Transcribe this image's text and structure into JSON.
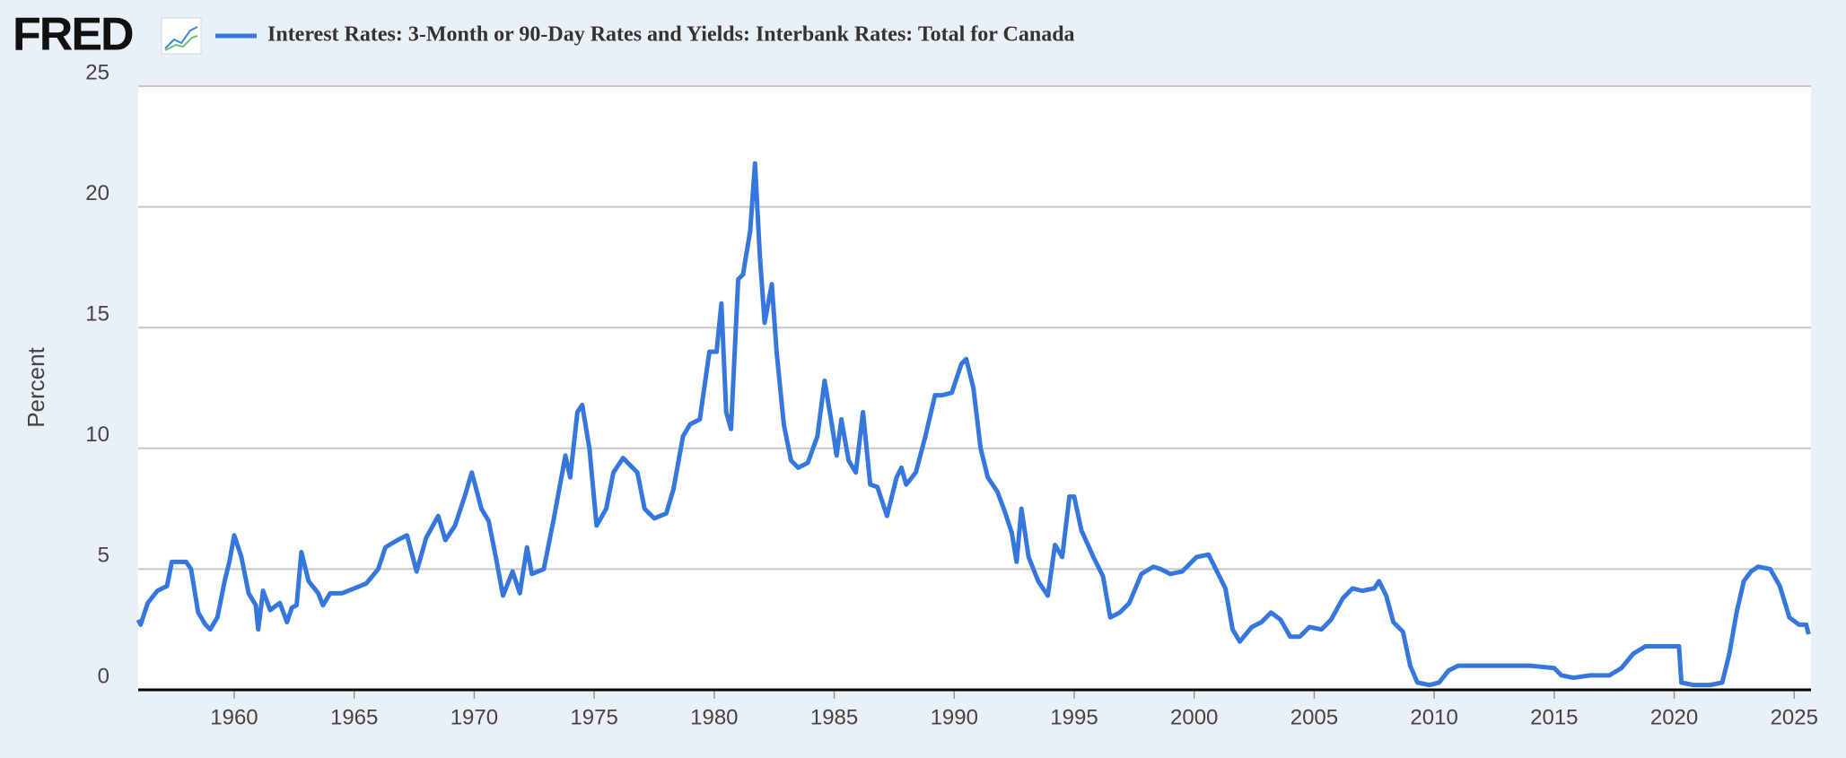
{
  "brand": "FRED",
  "chart_data": {
    "type": "line",
    "y_label": "Percent",
    "xlim": [
      1956.0,
      2025.7
    ],
    "ylim": [
      0,
      25
    ],
    "xticks": [
      1960,
      1965,
      1970,
      1975,
      1980,
      1985,
      1990,
      1995,
      2000,
      2005,
      2010,
      2015,
      2020,
      2025
    ],
    "yticks": [
      0,
      5,
      10,
      15,
      20,
      25
    ],
    "grid": true,
    "x": [
      1956.0,
      1956.1,
      1956.4,
      1956.8,
      1957.2,
      1957.4,
      1958.0,
      1958.2,
      1958.5,
      1958.8,
      1959.0,
      1959.3,
      1959.6,
      1959.8,
      1960.0,
      1960.3,
      1960.6,
      1960.9,
      1961.0,
      1961.2,
      1961.5,
      1961.9,
      1962.2,
      1962.4,
      1962.6,
      1962.8,
      1963.1,
      1963.5,
      1963.7,
      1964.0,
      1964.5,
      1965.0,
      1965.5,
      1966.0,
      1966.3,
      1966.8,
      1967.2,
      1967.6,
      1968.0,
      1968.5,
      1968.8,
      1969.2,
      1969.6,
      1969.9,
      1970.3,
      1970.6,
      1970.9,
      1971.2,
      1971.6,
      1971.9,
      1972.2,
      1972.4,
      1972.9,
      1973.3,
      1973.8,
      1974.0,
      1974.3,
      1974.5,
      1974.8,
      1975.1,
      1975.5,
      1975.8,
      1976.2,
      1976.8,
      1977.1,
      1977.5,
      1978.0,
      1978.3,
      1978.7,
      1979.0,
      1979.4,
      1979.8,
      1980.1,
      1980.3,
      1980.5,
      1980.7,
      1981.0,
      1981.2,
      1981.5,
      1981.7,
      1981.9,
      1982.1,
      1982.4,
      1982.6,
      1982.9,
      1983.2,
      1983.5,
      1983.9,
      1984.3,
      1984.6,
      1984.9,
      1985.1,
      1985.3,
      1985.6,
      1985.9,
      1986.2,
      1986.5,
      1986.8,
      1987.2,
      1987.6,
      1987.8,
      1988.0,
      1988.4,
      1988.8,
      1989.2,
      1989.5,
      1989.9,
      1990.3,
      1990.5,
      1990.8,
      1991.1,
      1991.4,
      1991.8,
      1992.1,
      1992.4,
      1992.6,
      1992.8,
      1993.1,
      1993.5,
      1993.9,
      1994.2,
      1994.5,
      1994.8,
      1995.0,
      1995.3,
      1995.8,
      1996.2,
      1996.5,
      1996.9,
      1997.3,
      1997.8,
      1998.3,
      1998.6,
      1999.0,
      1999.5,
      2000.1,
      2000.6,
      2000.9,
      2001.3,
      2001.6,
      2001.9,
      2002.4,
      2002.8,
      2003.2,
      2003.6,
      2004.0,
      2004.4,
      2004.8,
      2005.3,
      2005.7,
      2006.2,
      2006.6,
      2007.0,
      2007.5,
      2007.7,
      2008.0,
      2008.3,
      2008.7,
      2009.0,
      2009.3,
      2009.8,
      2010.2,
      2010.6,
      2011.0,
      2012.0,
      2013.0,
      2014.0,
      2015.0,
      2015.3,
      2015.8,
      2016.5,
      2017.3,
      2017.8,
      2018.3,
      2018.8,
      2019.5,
      2020.2,
      2020.3,
      2020.8,
      2021.5,
      2022.0,
      2022.3,
      2022.6,
      2022.9,
      2023.2,
      2023.5,
      2024.0,
      2024.4,
      2024.8,
      2025.2,
      2025.5,
      2025.6
    ],
    "series": [
      {
        "name": "Interest Rates: 3-Month or 90-Day Rates and Yields: Interbank Rates: Total for Canada",
        "color": "#3577dc",
        "values": [
          2.9,
          2.7,
          3.6,
          4.1,
          4.3,
          5.3,
          5.3,
          5.0,
          3.2,
          2.7,
          2.5,
          3.0,
          4.5,
          5.3,
          6.4,
          5.5,
          4.0,
          3.5,
          2.5,
          4.1,
          3.3,
          3.6,
          2.8,
          3.4,
          3.5,
          5.7,
          4.5,
          4.0,
          3.5,
          4.0,
          4.0,
          4.2,
          4.4,
          5.0,
          5.9,
          6.2,
          6.4,
          4.9,
          6.3,
          7.2,
          6.2,
          6.8,
          8.0,
          9.0,
          7.5,
          7.0,
          5.5,
          3.9,
          4.9,
          4.0,
          5.9,
          4.8,
          5.0,
          7.0,
          9.7,
          8.8,
          11.5,
          11.8,
          10.0,
          6.8,
          7.5,
          9.0,
          9.6,
          9.0,
          7.5,
          7.1,
          7.3,
          8.3,
          10.5,
          11.0,
          11.2,
          14.0,
          14.0,
          16.0,
          11.5,
          10.8,
          17.0,
          17.2,
          19.0,
          21.8,
          18.0,
          15.2,
          16.8,
          14.0,
          11.0,
          9.5,
          9.2,
          9.4,
          10.5,
          12.8,
          11.0,
          9.7,
          11.2,
          9.5,
          9.0,
          11.5,
          8.5,
          8.4,
          7.2,
          8.8,
          9.2,
          8.5,
          9.0,
          10.5,
          12.2,
          12.2,
          12.3,
          13.5,
          13.7,
          12.5,
          10.0,
          8.8,
          8.2,
          7.4,
          6.5,
          5.3,
          7.5,
          5.5,
          4.5,
          3.9,
          6.0,
          5.5,
          8.0,
          8.0,
          6.6,
          5.5,
          4.7,
          3.0,
          3.2,
          3.6,
          4.8,
          5.1,
          5.0,
          4.8,
          4.9,
          5.5,
          5.6,
          5.0,
          4.2,
          2.5,
          2.0,
          2.6,
          2.8,
          3.2,
          2.9,
          2.2,
          2.2,
          2.6,
          2.5,
          2.9,
          3.8,
          4.2,
          4.1,
          4.2,
          4.5,
          3.9,
          2.8,
          2.4,
          1.0,
          0.3,
          0.2,
          0.3,
          0.8,
          1.0,
          1.0,
          1.0,
          1.0,
          0.9,
          0.6,
          0.5,
          0.6,
          0.6,
          0.9,
          1.5,
          1.8,
          1.8,
          1.8,
          0.3,
          0.2,
          0.2,
          0.3,
          1.5,
          3.2,
          4.5,
          4.9,
          5.1,
          5.0,
          4.3,
          3.0,
          2.7,
          2.7,
          2.3
        ]
      }
    ]
  }
}
